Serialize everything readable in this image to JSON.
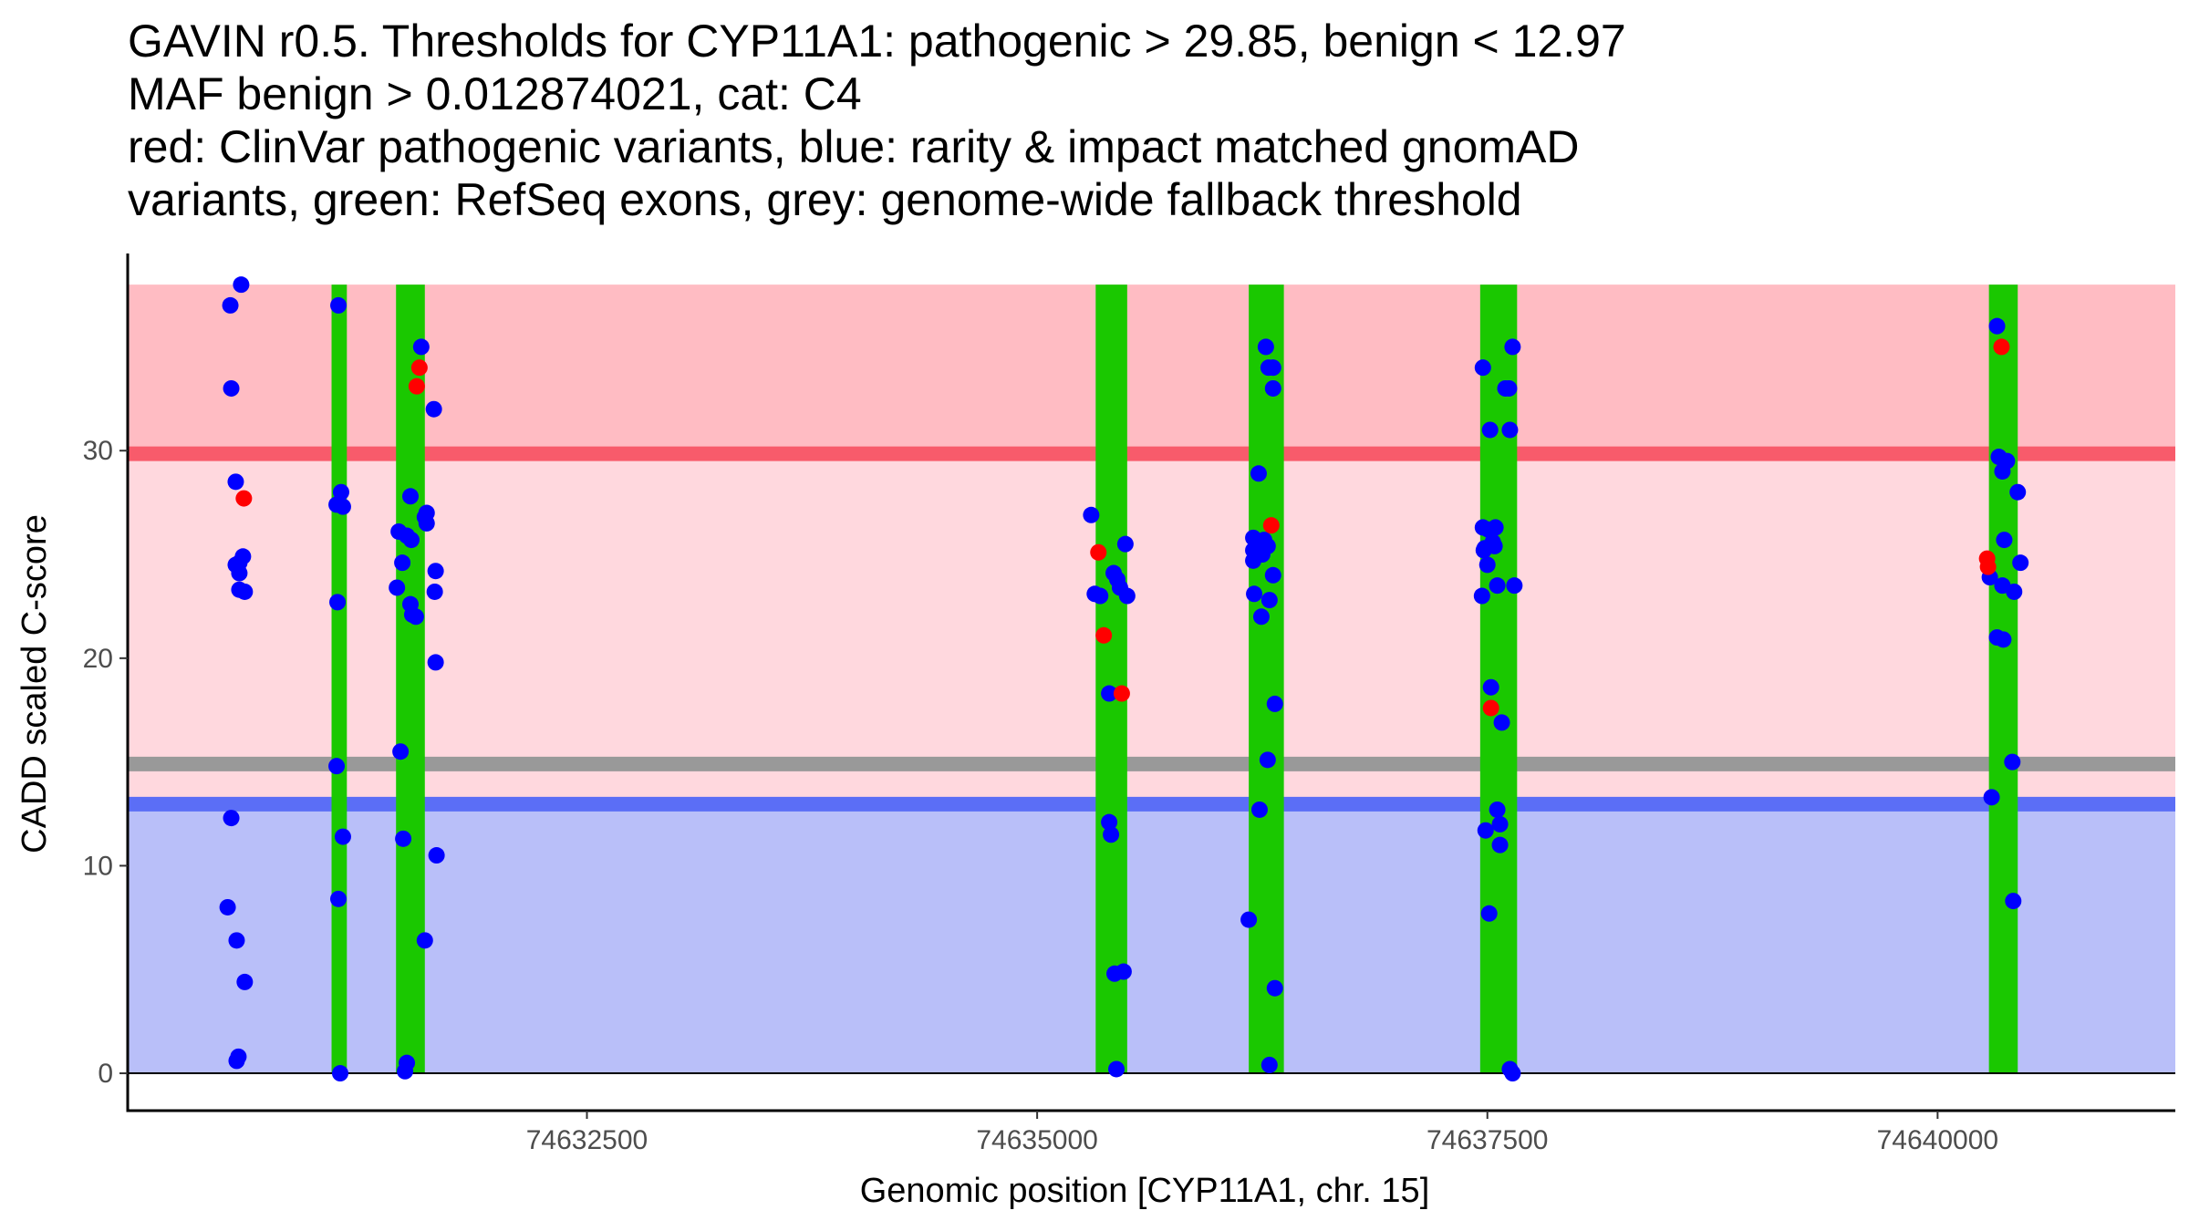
{
  "chart_data": {
    "type": "scatter",
    "title_lines": [
      "GAVIN r0.5. Thresholds for CYP11A1: pathogenic > 29.85, benign < 12.97",
      "MAF benign > 0.012874021, cat: C4",
      "red: ClinVar pathogenic variants, blue: rarity & impact matched gnomAD",
      "variants, green: RefSeq exons, grey: genome-wide fallback threshold"
    ],
    "xlabel": "Genomic position [CYP11A1, chr. 15]",
    "ylabel": "CADD scaled C-score",
    "xlim": [
      74629950,
      74641320
    ],
    "ylim": [
      -1.8,
      39.5
    ],
    "xticks": [
      74632500,
      74635000,
      74637500,
      74640000
    ],
    "yticks": [
      0,
      10,
      20,
      30
    ],
    "thresholds": {
      "pathogenic": 29.85,
      "benign": 12.97,
      "fallback": 14.9,
      "data_max": 38
    },
    "regions": [
      {
        "name": "benign-region",
        "from": 0,
        "to": 12.97,
        "color": "#b9bff9"
      },
      {
        "name": "mid-region",
        "from": 12.97,
        "to": 29.85,
        "color": "#ffd8de"
      },
      {
        "name": "pathogenic-region",
        "from": 29.85,
        "to": 38,
        "color": "#ffbcc3"
      }
    ],
    "lines": [
      {
        "name": "fallback-threshold-line",
        "value": 14.9,
        "color": "#999999"
      },
      {
        "name": "benign-threshold-line",
        "value": 12.97,
        "color": "#5b6ef6"
      },
      {
        "name": "pathogenic-threshold-line",
        "value": 29.85,
        "color": "#f85b6b"
      }
    ],
    "exons": [
      [
        74631082,
        74631167
      ],
      [
        74631440,
        74631600
      ],
      [
        74635325,
        74635500
      ],
      [
        74636175,
        74636370
      ],
      [
        74637460,
        74637665
      ],
      [
        74640285,
        74640445
      ]
    ],
    "colors": {
      "pathogenic": "#ff0000",
      "benign": "#0000ff",
      "exon": "#1ac800"
    },
    "series": [
      {
        "name": "ClinVar pathogenic",
        "color": "#ff0000",
        "points": [
          [
            74630595,
            27.7
          ],
          [
            74631555,
            33.1
          ],
          [
            74631570,
            34.0
          ],
          [
            74635340,
            25.1
          ],
          [
            74635370,
            21.1
          ],
          [
            74635470,
            18.3
          ],
          [
            74636300,
            26.4
          ],
          [
            74637520,
            17.6
          ],
          [
            74640275,
            24.8
          ],
          [
            74640280,
            24.4
          ],
          [
            74640355,
            35.0
          ]
        ]
      },
      {
        "name": "gnomAD benign",
        "color": "#0000ff",
        "points": [
          [
            74630520,
            37.0
          ],
          [
            74630580,
            38.0
          ],
          [
            74630525,
            33.0
          ],
          [
            74630550,
            28.5
          ],
          [
            74630550,
            24.5
          ],
          [
            74630570,
            24.6
          ],
          [
            74630590,
            24.9
          ],
          [
            74630570,
            24.1
          ],
          [
            74630570,
            23.3
          ],
          [
            74630600,
            23.2
          ],
          [
            74630525,
            12.3
          ],
          [
            74630505,
            8.0
          ],
          [
            74630555,
            6.4
          ],
          [
            74630600,
            4.4
          ],
          [
            74630555,
            0.6
          ],
          [
            74630565,
            0.8
          ],
          [
            74631120,
            37.0
          ],
          [
            74631135,
            28.0
          ],
          [
            74631110,
            27.4
          ],
          [
            74631145,
            27.3
          ],
          [
            74631115,
            22.7
          ],
          [
            74631110,
            14.8
          ],
          [
            74631145,
            11.4
          ],
          [
            74631120,
            8.4
          ],
          [
            74631130,
            0.0
          ],
          [
            74631580,
            35.0
          ],
          [
            74631650,
            32.0
          ],
          [
            74631520,
            27.8
          ],
          [
            74631610,
            27.0
          ],
          [
            74631600,
            26.8
          ],
          [
            74631610,
            26.5
          ],
          [
            74631455,
            26.1
          ],
          [
            74631500,
            25.9
          ],
          [
            74631525,
            25.7
          ],
          [
            74631475,
            24.6
          ],
          [
            74631660,
            24.2
          ],
          [
            74631445,
            23.4
          ],
          [
            74631655,
            23.2
          ],
          [
            74631520,
            22.6
          ],
          [
            74631530,
            22.1
          ],
          [
            74631550,
            22.0
          ],
          [
            74631660,
            19.8
          ],
          [
            74631465,
            15.5
          ],
          [
            74631480,
            11.3
          ],
          [
            74631665,
            10.5
          ],
          [
            74631600,
            6.4
          ],
          [
            74631500,
            0.5
          ],
          [
            74631490,
            0.1
          ],
          [
            74635300,
            26.9
          ],
          [
            74635490,
            25.5
          ],
          [
            74635425,
            24.1
          ],
          [
            74635445,
            23.8
          ],
          [
            74635460,
            23.4
          ],
          [
            74635320,
            23.1
          ],
          [
            74635350,
            23.0
          ],
          [
            74635500,
            23.0
          ],
          [
            74635400,
            18.3
          ],
          [
            74635400,
            12.1
          ],
          [
            74635410,
            11.5
          ],
          [
            74635430,
            4.8
          ],
          [
            74635480,
            4.9
          ],
          [
            74635440,
            0.2
          ],
          [
            74636270,
            35.0
          ],
          [
            74636285,
            34.0
          ],
          [
            74636310,
            34.0
          ],
          [
            74636310,
            33.0
          ],
          [
            74636230,
            28.9
          ],
          [
            74636200,
            25.8
          ],
          [
            74636260,
            25.7
          ],
          [
            74636280,
            25.4
          ],
          [
            74636230,
            25.4
          ],
          [
            74636200,
            25.2
          ],
          [
            74636215,
            25.0
          ],
          [
            74636200,
            24.7
          ],
          [
            74636250,
            25.0
          ],
          [
            74636310,
            24.0
          ],
          [
            74636290,
            22.8
          ],
          [
            74636205,
            23.1
          ],
          [
            74636245,
            22.0
          ],
          [
            74636320,
            17.8
          ],
          [
            74636280,
            15.1
          ],
          [
            74636235,
            12.7
          ],
          [
            74636175,
            7.4
          ],
          [
            74636320,
            4.1
          ],
          [
            74636290,
            0.4
          ],
          [
            74637475,
            34.0
          ],
          [
            74637515,
            31.0
          ],
          [
            74637600,
            33.0
          ],
          [
            74637620,
            33.0
          ],
          [
            74637640,
            35.0
          ],
          [
            74637625,
            31.0
          ],
          [
            74637475,
            26.3
          ],
          [
            74637505,
            26.2
          ],
          [
            74637545,
            26.3
          ],
          [
            74637485,
            25.3
          ],
          [
            74637530,
            25.6
          ],
          [
            74637540,
            25.4
          ],
          [
            74637480,
            25.2
          ],
          [
            74637500,
            24.5
          ],
          [
            74637555,
            23.5
          ],
          [
            74637650,
            23.5
          ],
          [
            74637470,
            23.0
          ],
          [
            74637520,
            18.6
          ],
          [
            74637580,
            16.9
          ],
          [
            74637555,
            12.7
          ],
          [
            74637570,
            12.0
          ],
          [
            74637490,
            11.7
          ],
          [
            74637570,
            11.0
          ],
          [
            74637510,
            7.7
          ],
          [
            74637625,
            0.2
          ],
          [
            74637640,
            0.0
          ],
          [
            74640330,
            36.0
          ],
          [
            74640340,
            29.7
          ],
          [
            74640385,
            29.5
          ],
          [
            74640360,
            29.0
          ],
          [
            74640445,
            28.0
          ],
          [
            74640370,
            25.7
          ],
          [
            74640460,
            24.6
          ],
          [
            74640290,
            23.9
          ],
          [
            74640360,
            23.5
          ],
          [
            74640425,
            23.2
          ],
          [
            74640330,
            21.0
          ],
          [
            74640365,
            20.9
          ],
          [
            74640415,
            15.0
          ],
          [
            74640300,
            13.3
          ],
          [
            74640420,
            8.3
          ]
        ]
      }
    ]
  }
}
